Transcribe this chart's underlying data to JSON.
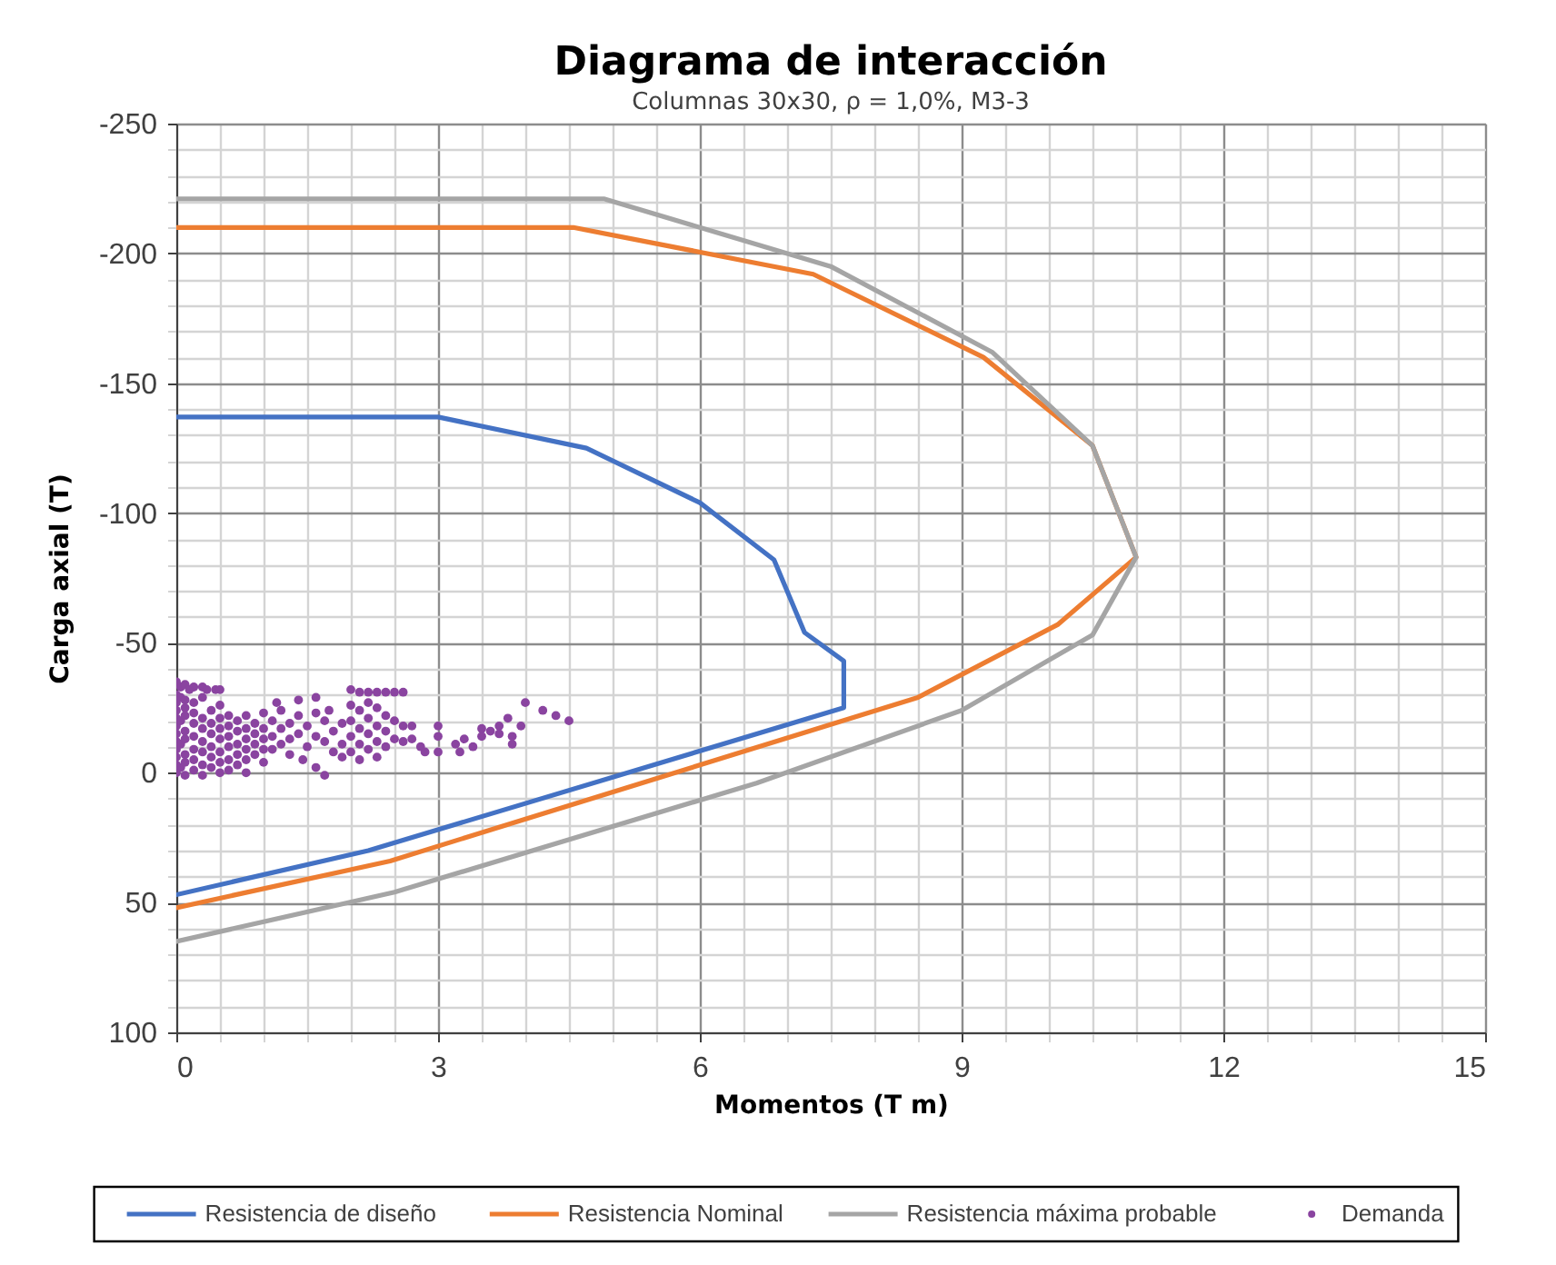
{
  "chart_data": {
    "type": "line",
    "title": "Diagrama de interacción",
    "subtitle": "Columnas 30x30, ρ = 1,0%, M3-3",
    "xlabel": "Momentos (T m)",
    "ylabel": "Carga axial (T)",
    "xlim": [
      0,
      15
    ],
    "ylim": [
      100,
      -250
    ],
    "xticks": [
      0,
      {
        "value": 0.5,
        "label": null
      },
      {
        "value": 1,
        "label": null
      },
      {
        "value": 1.5,
        "label": null
      },
      {
        "value": 2,
        "label": null
      },
      {
        "value": 2.5,
        "label": null
      },
      3,
      {
        "value": 3.5,
        "label": null
      },
      {
        "value": 4,
        "label": null
      },
      {
        "value": 4.5,
        "label": null
      },
      {
        "value": 5,
        "label": null
      },
      {
        "value": 5.5,
        "label": null
      },
      6,
      {
        "value": 6.5,
        "label": null
      },
      {
        "value": 7,
        "label": null
      },
      {
        "value": 7.5,
        "label": null
      },
      {
        "value": 8,
        "label": null
      },
      {
        "value": 8.5,
        "label": null
      },
      9,
      {
        "value": 9.5,
        "label": null
      },
      {
        "value": 10,
        "label": null
      },
      {
        "value": 10.5,
        "label": null
      },
      {
        "value": 11,
        "label": null
      },
      {
        "value": 11.5,
        "label": null
      },
      12,
      {
        "value": 12.5,
        "label": null
      },
      {
        "value": 13,
        "label": null
      },
      {
        "value": 13.5,
        "label": null
      },
      {
        "value": 14,
        "label": null
      },
      {
        "value": 14.5,
        "label": null
      },
      15
    ],
    "yticks": [
      -250,
      {
        "value": -240,
        "label": null
      },
      {
        "value": -230,
        "label": null
      },
      {
        "value": -220,
        "label": null
      },
      {
        "value": -210,
        "label": null
      },
      -200,
      {
        "value": -190,
        "label": null
      },
      {
        "value": -180,
        "label": null
      },
      {
        "value": -170,
        "label": null
      },
      {
        "value": -160,
        "label": null
      },
      -150,
      {
        "value": -140,
        "label": null
      },
      {
        "value": -130,
        "label": null
      },
      {
        "value": -120,
        "label": null
      },
      {
        "value": -110,
        "label": null
      },
      -100,
      {
        "value": -90,
        "label": null
      },
      {
        "value": -80,
        "label": null
      },
      {
        "value": -70,
        "label": null
      },
      {
        "value": -60,
        "label": null
      },
      -50,
      {
        "value": -40,
        "label": null
      },
      {
        "value": -30,
        "label": null
      },
      {
        "value": -20,
        "label": null
      },
      {
        "value": -10,
        "label": null
      },
      0,
      {
        "value": 10,
        "label": null
      },
      {
        "value": 20,
        "label": null
      },
      {
        "value": 30,
        "label": null
      },
      {
        "value": 40,
        "label": null
      },
      50,
      {
        "value": 60,
        "label": null
      },
      {
        "value": 70,
        "label": null
      },
      {
        "value": 80,
        "label": null
      },
      {
        "value": 90,
        "label": null
      },
      100
    ],
    "grid": true,
    "legend": "bottom",
    "line_style": "solid",
    "series": [
      {
        "name": "Resistencia de diseño",
        "color": "#4472c4",
        "x": [
          0,
          3.0,
          4.7,
          6.0,
          6.85,
          7.2,
          7.65,
          7.65,
          2.2,
          0
        ],
        "values": [
          -137,
          -137,
          -125,
          -104,
          -82,
          -54,
          -43,
          -25,
          30,
          47
        ]
      },
      {
        "name": "Resistencia Nominal",
        "color": "#ed7d31",
        "x": [
          0,
          4.55,
          7.3,
          9.25,
          10.5,
          11.0,
          10.1,
          8.5,
          2.45,
          0
        ],
        "values": [
          -210,
          -210,
          -192,
          -160,
          -126,
          -83,
          -57,
          -29,
          34,
          52
        ]
      },
      {
        "name": "Resistencia máxima probable",
        "color": "#a5a5a5",
        "x": [
          0,
          4.9,
          7.5,
          9.35,
          10.5,
          11.0,
          10.5,
          9.0,
          6.65,
          2.5,
          0
        ],
        "values": [
          -221,
          -221,
          -195,
          -162,
          -126,
          -83,
          -53,
          -24,
          4,
          46,
          65
        ]
      },
      {
        "name": "Demanda",
        "type": "scatter",
        "color": "#8a44a0",
        "marker": "circle",
        "x": [
          0,
          0.05,
          0.1,
          0.15,
          0.2,
          0.3,
          0.35,
          0.45,
          0.5,
          0,
          0,
          0,
          0,
          0,
          0,
          0,
          0,
          0,
          0,
          0,
          0.05,
          0.05,
          0.05,
          0.05,
          0.1,
          0.1,
          0.1,
          0.1,
          0.1,
          0.1,
          0.1,
          0.1,
          0.2,
          0.2,
          0.2,
          0.2,
          0.2,
          0.2,
          0.2,
          0.3,
          0.3,
          0.3,
          0.3,
          0.3,
          0.3,
          0.3,
          0.4,
          0.4,
          0.4,
          0.4,
          0.4,
          0.4,
          0.5,
          0.5,
          0.5,
          0.5,
          0.5,
          0.5,
          0.5,
          0.6,
          0.6,
          0.6,
          0.6,
          0.6,
          0.6,
          0.7,
          0.7,
          0.7,
          0.7,
          0.7,
          0.8,
          0.8,
          0.8,
          0.8,
          0.8,
          0.8,
          0.9,
          0.9,
          0.9,
          0.9,
          1.0,
          1.0,
          1.0,
          1.0,
          1.0,
          1.15,
          1.1,
          1.1,
          1.1,
          1.2,
          1.2,
          1.2,
          1.3,
          1.3,
          1.3,
          1.4,
          1.4,
          1.4,
          1.5,
          1.5,
          1.45,
          1.6,
          1.6,
          1.6,
          1.6,
          1.7,
          1.7,
          1.7,
          1.75,
          1.8,
          1.8,
          1.9,
          1.9,
          1.9,
          2.0,
          2.1,
          2.2,
          2.3,
          2.4,
          2.5,
          2.6,
          2.0,
          2.0,
          2.0,
          2.0,
          2.1,
          2.1,
          2.1,
          2.1,
          2.2,
          2.2,
          2.2,
          2.2,
          2.3,
          2.3,
          2.3,
          2.3,
          2.4,
          2.4,
          2.4,
          2.5,
          2.5,
          2.6,
          2.6,
          2.7,
          2.7,
          2.8,
          2.85,
          3.0,
          3.0,
          3.0,
          3.2,
          3.25,
          3.3,
          3.4,
          3.5,
          3.5,
          3.6,
          3.7,
          3.7,
          3.8,
          3.85,
          3.85,
          3.95,
          4.0,
          4.2,
          4.35,
          4.5
        ],
        "values": [
          -35,
          -33,
          -34,
          -32,
          -33,
          -33,
          -32,
          -32,
          -32,
          -30,
          -27,
          -24,
          -21,
          -18,
          -15,
          -12,
          -9,
          -6,
          -3,
          0,
          -29,
          -20,
          -11,
          -2,
          -28,
          -25,
          -22,
          -16,
          -13,
          -7,
          -4,
          1,
          -27,
          -23,
          -19,
          -14,
          -9,
          -5,
          -1,
          -29,
          -21,
          -17,
          -12,
          -8,
          -3,
          1,
          -24,
          -19,
          -15,
          -10,
          -6,
          -2,
          -26,
          -21,
          -17,
          -13,
          -8,
          -4,
          0,
          -22,
          -18,
          -14,
          -10,
          -5,
          -1,
          -20,
          -16,
          -11,
          -7,
          -3,
          -22,
          -17,
          -13,
          -9,
          -5,
          0,
          -19,
          -15,
          -11,
          -7,
          -23,
          -17,
          -13,
          -9,
          -4,
          -27,
          -20,
          -14,
          -9,
          -24,
          -17,
          -11,
          -19,
          -13,
          -7,
          -28,
          -22,
          -15,
          -18,
          -10,
          -5,
          -29,
          -23,
          -14,
          -2,
          -20,
          -12,
          1,
          -24,
          -16,
          -8,
          -19,
          -11,
          -6,
          -32,
          -31,
          -31,
          -31,
          -31,
          -31,
          -31,
          -26,
          -20,
          -14,
          -8,
          -24,
          -17,
          -11,
          -5,
          -27,
          -21,
          -15,
          -9,
          -25,
          -18,
          -12,
          -6,
          -22,
          -16,
          -10,
          -20,
          -13,
          -18,
          -12,
          -18,
          -13,
          -10,
          -8,
          -18,
          -14,
          -8,
          -11,
          -8,
          -13,
          -10,
          -17,
          -14,
          -16,
          -18,
          -15,
          -21,
          -14,
          -11,
          -18,
          -27,
          -24,
          -22,
          -20
        ]
      }
    ]
  }
}
